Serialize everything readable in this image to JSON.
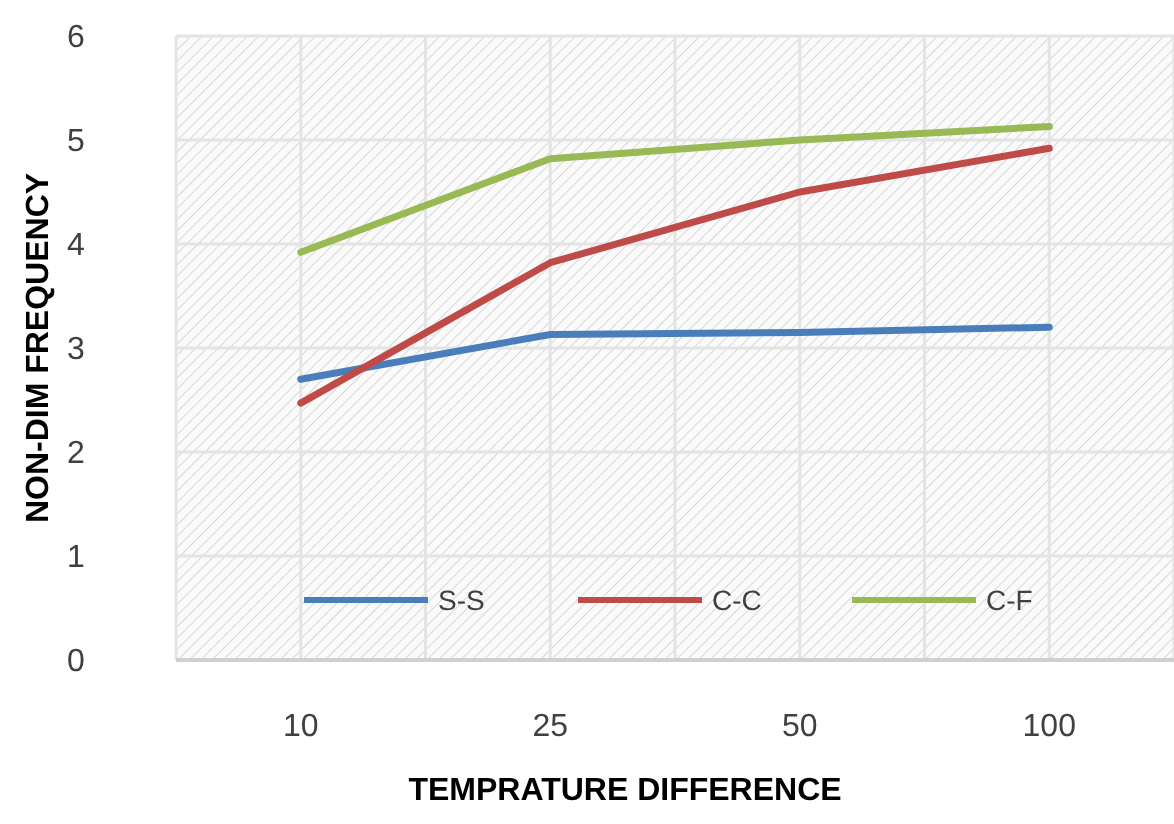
{
  "chart_data": {
    "type": "line",
    "xlabel": "TEMPRATURE DIFFERENCE",
    "ylabel": "NON-DIM FREQUENCY",
    "categories": [
      "10",
      "25",
      "50",
      "100"
    ],
    "series": [
      {
        "name": "S-S",
        "color": "#4a7ebb",
        "values": [
          2.7,
          3.13,
          3.15,
          3.2
        ]
      },
      {
        "name": "C-C",
        "color": "#be4b48",
        "values": [
          2.47,
          3.82,
          4.5,
          4.92
        ]
      },
      {
        "name": "C-F",
        "color": "#98b954",
        "values": [
          3.92,
          4.82,
          5.0,
          5.13
        ]
      }
    ],
    "ylim": [
      0,
      6
    ],
    "yticks": [
      0,
      1,
      2,
      3,
      4,
      5,
      6
    ],
    "grid": true,
    "legend": "bottom",
    "marker": "none",
    "line_style": "solid"
  }
}
